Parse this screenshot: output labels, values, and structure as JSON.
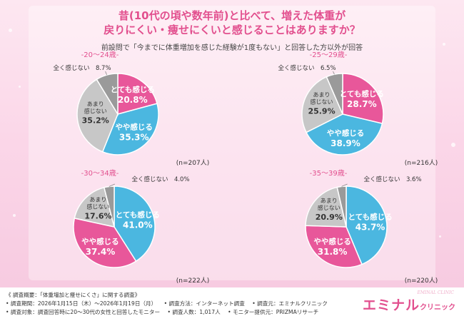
{
  "title_line1": "昔(10代の頃や数年前)と比べて、増えた体重が",
  "title_line2": "戻りにくい・痩せにくいと感じることはありますか？",
  "subtitle": "前設問で「今までに体重増加を感じた経験が1度もない」と回答した方以外が回答",
  "colors": {
    "very": "#e8579a",
    "somewhat": "#4bb7e0",
    "notmuch": "#c7c7c7",
    "notatall": "#9a9a9a",
    "title": "#e24f8e",
    "age": "#e24f8e"
  },
  "chart_data": [
    {
      "type": "pie",
      "age_label": "-20～24歳-",
      "n_label": "(n=207人)",
      "slices": [
        {
          "label": "とても感じる",
          "value": 20.8,
          "pct": "20.8%",
          "color": "#e8579a"
        },
        {
          "label": "やや感じる",
          "value": 35.3,
          "pct": "35.3%",
          "color": "#4bb7e0"
        },
        {
          "label": "あまり感じない",
          "value": 35.2,
          "pct": "35.2%",
          "color": "#c7c7c7"
        },
        {
          "label": "全く感じない",
          "value": 8.7,
          "pct": "8.7%",
          "color": "#9a9a9a"
        }
      ]
    },
    {
      "type": "pie",
      "age_label": "-25～29歳-",
      "n_label": "(n=216人)",
      "slices": [
        {
          "label": "とても感じる",
          "value": 28.7,
          "pct": "28.7%",
          "color": "#e8579a"
        },
        {
          "label": "やや感じる",
          "value": 38.9,
          "pct": "38.9%",
          "color": "#4bb7e0"
        },
        {
          "label": "あまり感じない",
          "value": 25.9,
          "pct": "25.9%",
          "color": "#c7c7c7"
        },
        {
          "label": "全く感じない",
          "value": 6.5,
          "pct": "6.5%",
          "color": "#9a9a9a"
        }
      ]
    },
    {
      "type": "pie",
      "age_label": "-30～34歳-",
      "n_label": "(n=222人)",
      "slices": [
        {
          "label": "とても感じる",
          "value": 41.0,
          "pct": "41.0%",
          "color": "#4bb7e0"
        },
        {
          "label": "やや感じる",
          "value": 37.4,
          "pct": "37.4%",
          "color": "#e8579a"
        },
        {
          "label": "あまり感じない",
          "value": 17.6,
          "pct": "17.6%",
          "color": "#c7c7c7"
        },
        {
          "label": "全く感じない",
          "value": 4.0,
          "pct": "4.0%",
          "color": "#9a9a9a"
        }
      ]
    },
    {
      "type": "pie",
      "age_label": "-35～39歳-",
      "n_label": "(n=220人)",
      "slices": [
        {
          "label": "とても感じる",
          "value": 43.7,
          "pct": "43.7%",
          "color": "#4bb7e0"
        },
        {
          "label": "やや感じる",
          "value": 31.8,
          "pct": "31.8%",
          "color": "#e8579a"
        },
        {
          "label": "あまり感じない",
          "value": 20.9,
          "pct": "20.9%",
          "color": "#c7c7c7"
        },
        {
          "label": "全く感じない",
          "value": 3.6,
          "pct": "3.6%",
          "color": "#9a9a9a"
        }
      ]
    }
  ],
  "footer": {
    "line1": "《 調査概要：「体重増加と痩せにくさ」に関する調査》",
    "period": "• 調査期間：2026年1月15日（木）～2026年1月19日（月）",
    "method": "• 調査方法：インターネット調査",
    "source": "• 調査元：エミナルクリニック",
    "target": "• 調査対象：調査回答時に20～30代の女性と回答したモニター",
    "count": "• 調査人数：1,017人",
    "provider": "• モニター提供元：PRIZMAリサーチ",
    "logo_main": "エミナル",
    "logo_small": "クリニック",
    "logo_sub": "EMINAL CLINIC"
  }
}
